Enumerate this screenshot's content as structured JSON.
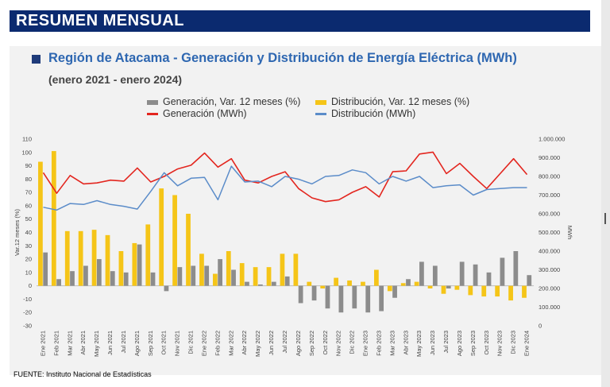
{
  "header": {
    "banner": "RESUMEN MENSUAL"
  },
  "source": "FUENTE: Instituto Nacional de Estadísticas",
  "colors": {
    "generacion_var": "#8c8c8c",
    "distribucion_var": "#f5c518",
    "generacion": "#e3261f",
    "distribucion": "#5b8cc9"
  },
  "chart_data": {
    "type": "bar",
    "title": "Región de Atacama - Generación y Distribución de Energía Eléctrica (MWh)",
    "subtitle": "(enero 2021 - enero 2024)",
    "ylabel": "Var.12 meses (%)",
    "y2label": "MWh",
    "ylim": [
      -30,
      110
    ],
    "y2lim": [
      0,
      1000000
    ],
    "yticks": [
      "-30",
      "-20",
      "-10",
      "0",
      "10",
      "20",
      "30",
      "40",
      "50",
      "60",
      "70",
      "80",
      "90",
      "100",
      "110"
    ],
    "y2ticks": [
      "0",
      "100.000",
      "200.000",
      "300.000",
      "400.000",
      "500.000",
      "600.000",
      "700.000",
      "800.000",
      "900.000",
      "1.000.000"
    ],
    "categories": [
      "Ene 2021",
      "Feb 2021",
      "Mar 2021",
      "Abr 2021",
      "May 2021",
      "Jun 2021",
      "Jul 2021",
      "Ago 2021",
      "Sep 2021",
      "Oct 2021",
      "Nov 2021",
      "Dic 2021",
      "Ene 2022",
      "Feb 2022",
      "Mar 2022",
      "Abr 2022",
      "May 2022",
      "Jun 2022",
      "Jul 2022",
      "Ago 2022",
      "Sep 2022",
      "Oct 2022",
      "Nov 2022",
      "Dic 2022",
      "Ene 2023",
      "Feb 2023",
      "Mar 2023",
      "Abr 2023",
      "May 2023",
      "Jun 2023",
      "Jul 2023",
      "Ago 2023",
      "Sep 2023",
      "Oct 2023",
      "Nov 2023",
      "Dic 2023",
      "Ene 2024"
    ],
    "legend": [
      "Generación, Var. 12 meses (%)",
      "Distribución, Var. 12 meses (%)",
      "Generación (MWh)",
      "Distribución (MWh)"
    ],
    "series": [
      {
        "name": "Generación, Var. 12 meses (%)",
        "axis": "left",
        "kind": "bar",
        "values": [
          25,
          5,
          11,
          15,
          20,
          11,
          10,
          31,
          10,
          -4,
          14,
          15,
          15,
          20,
          12,
          3,
          1,
          3,
          7,
          -13,
          -11,
          -17,
          -20,
          -17,
          -20,
          -19,
          -9,
          5,
          18,
          15,
          -2,
          18,
          16,
          10,
          21,
          26,
          8
        ]
      },
      {
        "name": "Distribución, Var. 12 meses (%)",
        "axis": "left",
        "kind": "bar",
        "values": [
          93,
          101,
          41,
          41,
          42,
          38,
          26,
          32,
          46,
          73,
          68,
          54,
          24,
          9,
          26,
          17,
          14,
          14,
          24,
          24,
          3,
          -2,
          6,
          4,
          3,
          12,
          -4,
          2,
          3,
          -2,
          -6,
          -3,
          -7,
          -8,
          -8,
          -11,
          -9
        ]
      },
      {
        "name": "Generación (MWh)",
        "axis": "right",
        "kind": "line",
        "values": [
          820000,
          710000,
          805000,
          760000,
          765000,
          780000,
          775000,
          845000,
          770000,
          800000,
          840000,
          860000,
          925000,
          850000,
          895000,
          780000,
          765000,
          800000,
          825000,
          735000,
          685000,
          665000,
          675000,
          715000,
          745000,
          690000,
          825000,
          830000,
          920000,
          930000,
          815000,
          870000,
          800000,
          735000,
          815000,
          895000,
          810000
        ]
      },
      {
        "name": "Distribución (MWh)",
        "axis": "right",
        "kind": "line",
        "values": [
          635000,
          620000,
          655000,
          650000,
          670000,
          650000,
          640000,
          625000,
          720000,
          820000,
          750000,
          790000,
          795000,
          675000,
          855000,
          770000,
          775000,
          745000,
          800000,
          785000,
          760000,
          800000,
          805000,
          835000,
          820000,
          760000,
          800000,
          775000,
          800000,
          740000,
          750000,
          755000,
          700000,
          730000,
          735000,
          740000,
          740000
        ]
      }
    ]
  }
}
